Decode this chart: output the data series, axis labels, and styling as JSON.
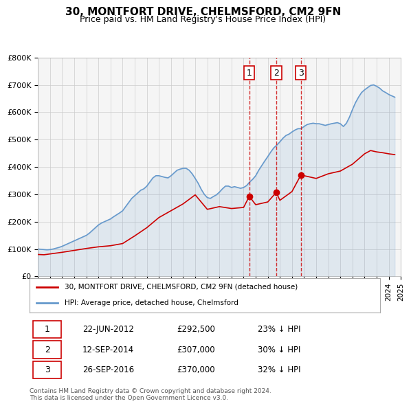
{
  "title": "30, MONTFORT DRIVE, CHELMSFORD, CM2 9FN",
  "subtitle": "Price paid vs. HM Land Registry's House Price Index (HPI)",
  "xlabel": "",
  "ylabel": "",
  "ylim": [
    0,
    800000
  ],
  "yticks": [
    0,
    100000,
    200000,
    300000,
    400000,
    500000,
    600000,
    700000,
    800000
  ],
  "ytick_labels": [
    "£0",
    "£100K",
    "£200K",
    "£300K",
    "£400K",
    "£500K",
    "£600K",
    "£700K",
    "£800K"
  ],
  "red_color": "#cc0000",
  "blue_color": "#6699cc",
  "bg_color": "#f5f5f5",
  "grid_color": "#cccccc",
  "legend_label_red": "30, MONTFORT DRIVE, CHELMSFORD, CM2 9FN (detached house)",
  "legend_label_blue": "HPI: Average price, detached house, Chelmsford",
  "transactions": [
    {
      "num": 1,
      "date": "22-JUN-2012",
      "price": "£292,500",
      "hpi": "23% ↓ HPI",
      "year": 2012.47
    },
    {
      "num": 2,
      "date": "12-SEP-2014",
      "price": "£307,000",
      "hpi": "30% ↓ HPI",
      "year": 2014.7
    },
    {
      "num": 3,
      "date": "26-SEP-2016",
      "price": "£370,000",
      "hpi": "32% ↓ HPI",
      "year": 2016.73
    }
  ],
  "transaction_values": [
    292500,
    307000,
    370000
  ],
  "footer": "Contains HM Land Registry data © Crown copyright and database right 2024.\nThis data is licensed under the Open Government Licence v3.0.",
  "hpi_data_x": [
    1995.0,
    1995.25,
    1995.5,
    1995.75,
    1996.0,
    1996.25,
    1996.5,
    1996.75,
    1997.0,
    1997.25,
    1997.5,
    1997.75,
    1998.0,
    1998.25,
    1998.5,
    1998.75,
    1999.0,
    1999.25,
    1999.5,
    1999.75,
    2000.0,
    2000.25,
    2000.5,
    2000.75,
    2001.0,
    2001.25,
    2001.5,
    2001.75,
    2002.0,
    2002.25,
    2002.5,
    2002.75,
    2003.0,
    2003.25,
    2003.5,
    2003.75,
    2004.0,
    2004.25,
    2004.5,
    2004.75,
    2005.0,
    2005.25,
    2005.5,
    2005.75,
    2006.0,
    2006.25,
    2006.5,
    2006.75,
    2007.0,
    2007.25,
    2007.5,
    2007.75,
    2008.0,
    2008.25,
    2008.5,
    2008.75,
    2009.0,
    2009.25,
    2009.5,
    2009.75,
    2010.0,
    2010.25,
    2010.5,
    2010.75,
    2011.0,
    2011.25,
    2011.5,
    2011.75,
    2012.0,
    2012.25,
    2012.5,
    2012.75,
    2013.0,
    2013.25,
    2013.5,
    2013.75,
    2014.0,
    2014.25,
    2014.5,
    2014.75,
    2015.0,
    2015.25,
    2015.5,
    2015.75,
    2016.0,
    2016.25,
    2016.5,
    2016.75,
    2017.0,
    2017.25,
    2017.5,
    2017.75,
    2018.0,
    2018.25,
    2018.5,
    2018.75,
    2019.0,
    2019.25,
    2019.5,
    2019.75,
    2020.0,
    2020.25,
    2020.5,
    2020.75,
    2021.0,
    2021.25,
    2021.5,
    2021.75,
    2022.0,
    2022.25,
    2022.5,
    2022.75,
    2023.0,
    2023.25,
    2023.5,
    2023.75,
    2024.0,
    2024.25,
    2024.5
  ],
  "hpi_data_y": [
    100000,
    99000,
    98000,
    97000,
    98000,
    100000,
    103000,
    106000,
    110000,
    115000,
    120000,
    125000,
    130000,
    135000,
    140000,
    145000,
    150000,
    158000,
    168000,
    178000,
    188000,
    195000,
    200000,
    205000,
    210000,
    218000,
    225000,
    232000,
    240000,
    255000,
    270000,
    285000,
    295000,
    305000,
    315000,
    320000,
    330000,
    345000,
    360000,
    368000,
    368000,
    365000,
    362000,
    360000,
    368000,
    378000,
    388000,
    392000,
    395000,
    395000,
    388000,
    375000,
    358000,
    340000,
    318000,
    300000,
    288000,
    285000,
    292000,
    298000,
    308000,
    320000,
    330000,
    330000,
    325000,
    328000,
    325000,
    322000,
    325000,
    332000,
    345000,
    355000,
    368000,
    388000,
    405000,
    422000,
    438000,
    455000,
    470000,
    480000,
    492000,
    505000,
    515000,
    520000,
    528000,
    535000,
    540000,
    540000,
    548000,
    555000,
    558000,
    560000,
    558000,
    558000,
    555000,
    552000,
    555000,
    558000,
    560000,
    562000,
    558000,
    548000,
    560000,
    582000,
    610000,
    635000,
    655000,
    672000,
    682000,
    690000,
    698000,
    700000,
    695000,
    688000,
    678000,
    672000,
    665000,
    660000,
    655000
  ],
  "red_data_x": [
    1995.0,
    1995.5,
    1996.0,
    1997.0,
    1998.0,
    1999.0,
    2000.0,
    2001.0,
    2002.0,
    2003.0,
    2004.0,
    2005.0,
    2006.0,
    2007.0,
    2008.0,
    2009.0,
    2010.0,
    2011.0,
    2012.0,
    2012.47,
    2013.0,
    2014.0,
    2014.7,
    2015.0,
    2016.0,
    2016.73,
    2017.0,
    2018.0,
    2019.0,
    2020.0,
    2021.0,
    2022.0,
    2022.5,
    2023.0,
    2023.5,
    2024.0,
    2024.5
  ],
  "red_data_y": [
    80000,
    79000,
    82000,
    88000,
    95000,
    102000,
    108000,
    112000,
    120000,
    148000,
    178000,
    215000,
    240000,
    265000,
    298000,
    245000,
    255000,
    248000,
    252000,
    292500,
    262000,
    272000,
    307000,
    278000,
    310000,
    370000,
    368000,
    358000,
    375000,
    385000,
    410000,
    448000,
    460000,
    455000,
    452000,
    448000,
    445000
  ]
}
